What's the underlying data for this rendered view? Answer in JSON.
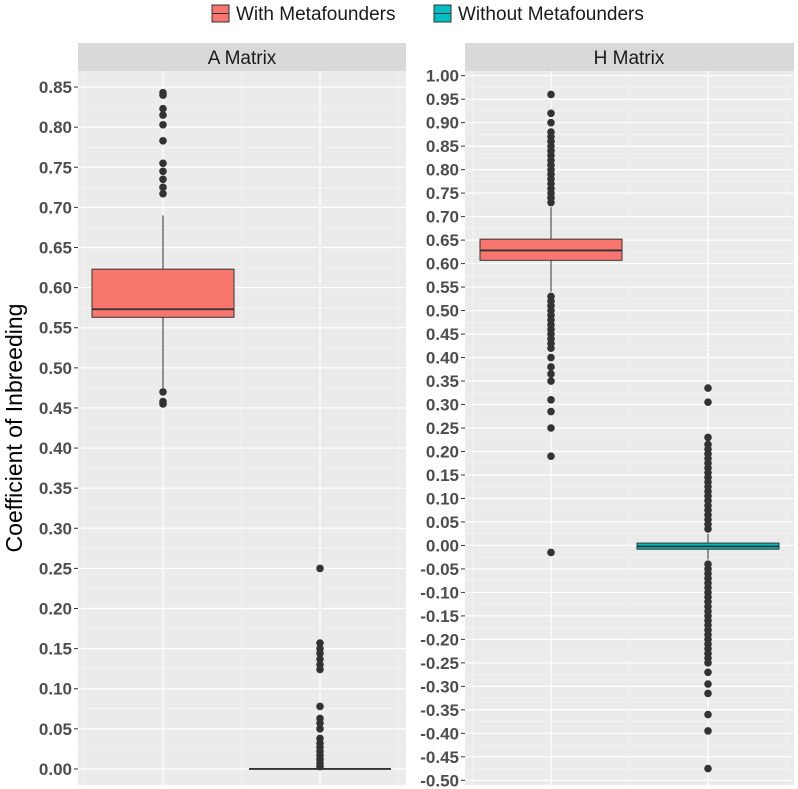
{
  "chart_data": {
    "type": "boxplot",
    "ylabel": "Coefficient of Inbreeding",
    "legend": {
      "position": "top",
      "entries": [
        {
          "name": "With Metafounders",
          "color": "#F8766D"
        },
        {
          "name": "Without Metafounders",
          "color": "#00BFC4"
        }
      ]
    },
    "panels": [
      {
        "title": "A Matrix",
        "ylim": [
          -0.02,
          0.87
        ],
        "yticks": [
          0.0,
          0.05,
          0.1,
          0.15,
          0.2,
          0.25,
          0.3,
          0.35,
          0.4,
          0.45,
          0.5,
          0.55,
          0.6,
          0.65,
          0.7,
          0.75,
          0.8,
          0.85
        ],
        "ytick_labels": [
          "0.00",
          "0.05",
          "0.10",
          "0.15",
          "0.20",
          "0.25",
          "0.30",
          "0.35",
          "0.40",
          "0.45",
          "0.50",
          "0.55",
          "0.60",
          "0.65",
          "0.70",
          "0.75",
          "0.80",
          "0.85"
        ],
        "boxes": [
          {
            "series": "With Metafounders",
            "color": "#F8766D",
            "whisker_low": 0.475,
            "q1": 0.563,
            "median": 0.573,
            "q3": 0.623,
            "whisker_high": 0.69,
            "outliers": [
              0.47,
              0.458,
              0.455,
              0.717,
              0.725,
              0.735,
              0.745,
              0.755,
              0.783,
              0.803,
              0.815,
              0.823,
              0.84,
              0.843
            ]
          },
          {
            "series": "Without Metafounders",
            "color": "#00BFC4",
            "whisker_low": 0.0,
            "q1": 0.0,
            "median": 0.0,
            "q3": 0.0,
            "whisker_high": 0.0,
            "outliers": [
              0.003,
              0.007,
              0.012,
              0.017,
              0.022,
              0.027,
              0.032,
              0.038,
              0.05,
              0.057,
              0.063,
              0.078,
              0.124,
              0.13,
              0.137,
              0.144,
              0.15,
              0.157,
              0.25
            ]
          }
        ]
      },
      {
        "title": "H Matrix",
        "ylim": [
          -0.51,
          1.01
        ],
        "yticks": [
          -0.5,
          -0.45,
          -0.4,
          -0.35,
          -0.3,
          -0.25,
          -0.2,
          -0.15,
          -0.1,
          -0.05,
          0.0,
          0.05,
          0.1,
          0.15,
          0.2,
          0.25,
          0.3,
          0.35,
          0.4,
          0.45,
          0.5,
          0.55,
          0.6,
          0.65,
          0.7,
          0.75,
          0.8,
          0.85,
          0.9,
          0.95,
          1.0
        ],
        "ytick_labels": [
          "-0.50",
          "-0.45",
          "-0.40",
          "-0.35",
          "-0.30",
          "-0.25",
          "-0.20",
          "-0.15",
          "-0.10",
          "-0.05",
          "0.00",
          "0.05",
          "0.10",
          "0.15",
          "0.20",
          "0.25",
          "0.30",
          "0.35",
          "0.40",
          "0.45",
          "0.50",
          "0.55",
          "0.60",
          "0.65",
          "0.70",
          "0.75",
          "0.80",
          "0.85",
          "0.90",
          "0.95",
          "1.00"
        ],
        "boxes": [
          {
            "series": "With Metafounders",
            "color": "#F8766D",
            "whisker_low": 0.54,
            "q1": 0.607,
            "median": 0.628,
            "q3": 0.652,
            "whisker_high": 0.72,
            "outliers": [
              0.73,
              0.74,
              0.75,
              0.76,
              0.77,
              0.78,
              0.79,
              0.8,
              0.81,
              0.82,
              0.83,
              0.84,
              0.85,
              0.86,
              0.87,
              0.88,
              0.9,
              0.92,
              0.96,
              0.53,
              0.52,
              0.51,
              0.5,
              0.49,
              0.48,
              0.47,
              0.46,
              0.45,
              0.44,
              0.43,
              0.42,
              0.4,
              0.38,
              0.365,
              0.35,
              0.31,
              0.285,
              0.25,
              0.19,
              -0.015
            ]
          },
          {
            "series": "Without Metafounders",
            "color": "#00BFC4",
            "whisker_low": -0.03,
            "q1": -0.008,
            "median": -0.002,
            "q3": 0.005,
            "whisker_high": 0.025,
            "outliers": [
              0.035,
              0.045,
              0.055,
              0.065,
              0.075,
              0.085,
              0.095,
              0.105,
              0.115,
              0.125,
              0.135,
              0.145,
              0.155,
              0.165,
              0.175,
              0.185,
              0.195,
              0.205,
              0.215,
              0.23,
              0.305,
              0.335,
              -0.04,
              -0.05,
              -0.06,
              -0.07,
              -0.08,
              -0.09,
              -0.1,
              -0.11,
              -0.12,
              -0.13,
              -0.14,
              -0.15,
              -0.16,
              -0.17,
              -0.18,
              -0.19,
              -0.2,
              -0.21,
              -0.22,
              -0.23,
              -0.24,
              -0.25,
              -0.27,
              -0.295,
              -0.315,
              -0.36,
              -0.395,
              -0.475
            ]
          }
        ]
      }
    ]
  }
}
